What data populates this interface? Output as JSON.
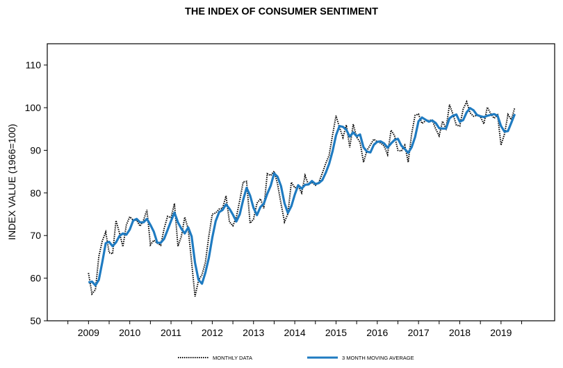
{
  "chart_data": {
    "type": "line",
    "title": "THE INDEX OF CONSUMER SENTIMENT",
    "ylabel": "INDEX VALUE (1966=100)",
    "xlabel": "",
    "ylim": [
      50,
      115
    ],
    "xlim": [
      2008,
      2020.3
    ],
    "yticks": [
      50,
      60,
      70,
      80,
      90,
      100,
      110
    ],
    "xticks": [
      2009,
      2010,
      2011,
      2012,
      2013,
      2014,
      2015,
      2016,
      2017,
      2018,
      2019
    ],
    "grid": false,
    "legend_position": "bottom",
    "series": [
      {
        "name": "MONTHLY DATA",
        "style": "dotted",
        "color": "#000000",
        "x": [
          2009.0,
          2009.083,
          2009.167,
          2009.25,
          2009.333,
          2009.417,
          2009.5,
          2009.583,
          2009.667,
          2009.75,
          2009.833,
          2009.917,
          2010.0,
          2010.083,
          2010.167,
          2010.25,
          2010.333,
          2010.417,
          2010.5,
          2010.583,
          2010.667,
          2010.75,
          2010.833,
          2010.917,
          2011.0,
          2011.083,
          2011.167,
          2011.25,
          2011.333,
          2011.417,
          2011.5,
          2011.583,
          2011.667,
          2011.75,
          2011.833,
          2011.917,
          2012.0,
          2012.083,
          2012.167,
          2012.25,
          2012.333,
          2012.417,
          2012.5,
          2012.583,
          2012.667,
          2012.75,
          2012.833,
          2012.917,
          2013.0,
          2013.083,
          2013.167,
          2013.25,
          2013.333,
          2013.417,
          2013.5,
          2013.583,
          2013.667,
          2013.75,
          2013.833,
          2013.917,
          2014.0,
          2014.083,
          2014.167,
          2014.25,
          2014.333,
          2014.417,
          2014.5,
          2014.583,
          2014.667,
          2014.75,
          2014.833,
          2014.917,
          2015.0,
          2015.083,
          2015.167,
          2015.25,
          2015.333,
          2015.417,
          2015.5,
          2015.583,
          2015.667,
          2015.75,
          2015.833,
          2015.917,
          2016.0,
          2016.083,
          2016.167,
          2016.25,
          2016.333,
          2016.417,
          2016.5,
          2016.583,
          2016.667,
          2016.75,
          2016.833,
          2016.917,
          2017.0,
          2017.083,
          2017.167,
          2017.25,
          2017.333,
          2017.417,
          2017.5,
          2017.583,
          2017.667,
          2017.75,
          2017.833,
          2017.917,
          2018.0,
          2018.083,
          2018.167,
          2018.25,
          2018.333,
          2018.417,
          2018.5,
          2018.583,
          2018.667,
          2018.75,
          2018.833,
          2018.917,
          2019.0,
          2019.083,
          2019.167,
          2019.25,
          2019.333
        ],
        "values": [
          61.2,
          56.3,
          57.3,
          65.1,
          68.7,
          70.8,
          66.0,
          65.7,
          73.5,
          70.6,
          67.4,
          72.5,
          74.4,
          73.6,
          73.6,
          72.2,
          73.6,
          76.0,
          67.8,
          68.9,
          68.2,
          67.7,
          71.6,
          74.5,
          74.2,
          77.5,
          67.5,
          69.8,
          74.3,
          71.5,
          63.7,
          55.7,
          59.5,
          60.8,
          63.7,
          69.9,
          75.0,
          75.3,
          76.2,
          76.4,
          79.3,
          73.2,
          72.3,
          74.3,
          78.3,
          82.6,
          82.7,
          72.9,
          73.8,
          77.6,
          78.6,
          76.4,
          84.5,
          84.1,
          85.1,
          82.1,
          77.5,
          73.2,
          75.1,
          82.5,
          81.2,
          81.6,
          80.0,
          84.1,
          81.9,
          82.5,
          81.8,
          82.5,
          84.6,
          86.9,
          88.8,
          93.6,
          98.1,
          95.4,
          93.0,
          95.9,
          90.7,
          96.1,
          93.1,
          91.9,
          87.2,
          90.0,
          91.3,
          92.6,
          92.0,
          91.7,
          91.0,
          89.0,
          94.7,
          93.5,
          90.0,
          89.8,
          91.2,
          87.2,
          93.8,
          98.2,
          98.5,
          96.3,
          96.9,
          97.0,
          97.1,
          95.0,
          93.4,
          96.8,
          95.1,
          100.7,
          98.5,
          95.9,
          95.7,
          99.7,
          101.4,
          98.8,
          98.0,
          98.2,
          97.9,
          96.2,
          100.1,
          98.6,
          97.5,
          98.3,
          91.2,
          93.8,
          98.4,
          97.2,
          100.0
        ]
      },
      {
        "name": "3 MONTH MOVING AVERAGE",
        "style": "solid",
        "color": "#1f7bc1",
        "x": [
          2009.0,
          2009.083,
          2009.167,
          2009.25,
          2009.333,
          2009.417,
          2009.5,
          2009.583,
          2009.667,
          2009.75,
          2009.833,
          2009.917,
          2010.0,
          2010.083,
          2010.167,
          2010.25,
          2010.333,
          2010.417,
          2010.5,
          2010.583,
          2010.667,
          2010.75,
          2010.833,
          2010.917,
          2011.0,
          2011.083,
          2011.167,
          2011.25,
          2011.333,
          2011.417,
          2011.5,
          2011.583,
          2011.667,
          2011.75,
          2011.833,
          2011.917,
          2012.0,
          2012.083,
          2012.167,
          2012.25,
          2012.333,
          2012.417,
          2012.5,
          2012.583,
          2012.667,
          2012.75,
          2012.833,
          2012.917,
          2013.0,
          2013.083,
          2013.167,
          2013.25,
          2013.333,
          2013.417,
          2013.5,
          2013.583,
          2013.667,
          2013.75,
          2013.833,
          2013.917,
          2014.0,
          2014.083,
          2014.167,
          2014.25,
          2014.333,
          2014.417,
          2014.5,
          2014.583,
          2014.667,
          2014.75,
          2014.833,
          2014.917,
          2015.0,
          2015.083,
          2015.167,
          2015.25,
          2015.333,
          2015.417,
          2015.5,
          2015.583,
          2015.667,
          2015.75,
          2015.833,
          2015.917,
          2016.0,
          2016.083,
          2016.167,
          2016.25,
          2016.333,
          2016.417,
          2016.5,
          2016.583,
          2016.667,
          2016.75,
          2016.833,
          2016.917,
          2017.0,
          2017.083,
          2017.167,
          2017.25,
          2017.333,
          2017.417,
          2017.5,
          2017.583,
          2017.667,
          2017.75,
          2017.833,
          2017.917,
          2018.0,
          2018.083,
          2018.167,
          2018.25,
          2018.333,
          2018.417,
          2018.5,
          2018.583,
          2018.667,
          2018.75,
          2018.833,
          2018.917,
          2019.0,
          2019.083,
          2019.167,
          2019.25,
          2019.333
        ],
        "values": [
          59.0,
          59.2,
          58.3,
          59.6,
          63.7,
          68.2,
          68.5,
          67.5,
          68.4,
          69.9,
          70.5,
          70.2,
          71.4,
          73.5,
          73.9,
          73.1,
          73.1,
          73.9,
          72.5,
          70.9,
          68.3,
          68.3,
          69.2,
          71.3,
          73.4,
          75.4,
          73.1,
          71.6,
          70.5,
          71.9,
          69.8,
          63.6,
          59.6,
          58.7,
          61.3,
          64.8,
          69.5,
          73.4,
          75.5,
          76.0,
          77.3,
          76.3,
          74.9,
          73.3,
          75.0,
          78.4,
          81.2,
          79.4,
          76.5,
          74.8,
          76.7,
          77.5,
          79.8,
          81.7,
          84.6,
          83.8,
          81.6,
          77.6,
          75.3,
          76.9,
          79.6,
          81.8,
          81.0,
          81.9,
          82.0,
          82.8,
          82.1,
          82.3,
          83.0,
          84.7,
          86.8,
          89.8,
          93.5,
          95.7,
          95.5,
          94.8,
          93.2,
          94.2,
          93.3,
          93.7,
          90.7,
          89.7,
          89.5,
          91.3,
          92.0,
          92.1,
          91.6,
          90.6,
          91.6,
          92.4,
          92.7,
          91.1,
          90.3,
          89.4,
          90.7,
          93.1,
          96.8,
          97.7,
          97.2,
          96.7,
          97.0,
          96.4,
          95.2,
          95.1,
          95.1,
          97.5,
          98.1,
          98.4,
          96.7,
          97.1,
          98.9,
          99.9,
          99.4,
          98.3,
          98.0,
          97.8,
          98.1,
          98.3,
          98.5,
          98.1,
          95.7,
          94.4,
          94.5,
          96.5,
          98.5
        ]
      }
    ]
  }
}
